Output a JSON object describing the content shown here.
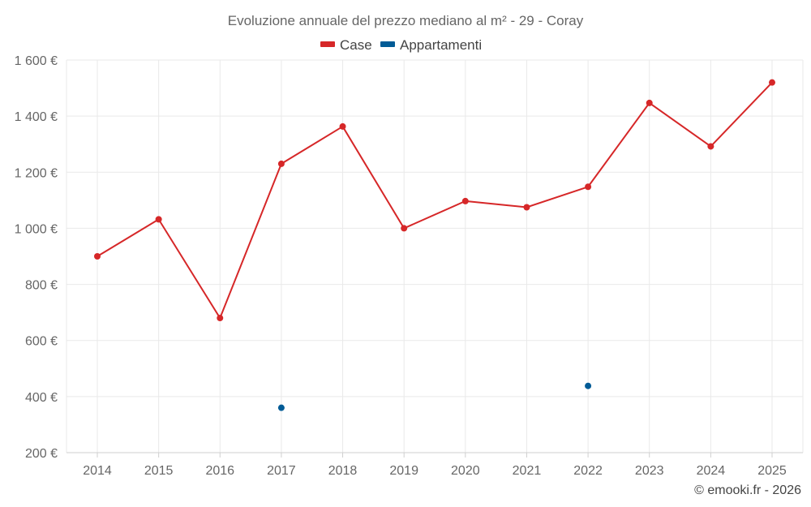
{
  "chart_data": {
    "type": "line",
    "title": "Evoluzione annuale del prezzo mediano al m² - 29 - Coray",
    "categories": [
      "2014",
      "2015",
      "2016",
      "2017",
      "2018",
      "2019",
      "2020",
      "2021",
      "2022",
      "2023",
      "2024",
      "2025"
    ],
    "series": [
      {
        "name": "Case",
        "color": "#d62728",
        "values": [
          900,
          1032,
          680,
          1230,
          1363,
          1000,
          1097,
          1075,
          1148,
          1447,
          1292,
          1520
        ]
      },
      {
        "name": "Appartamenti",
        "color": "#005b96",
        "values": [
          null,
          null,
          null,
          360,
          null,
          null,
          null,
          null,
          438,
          null,
          null,
          null
        ]
      }
    ],
    "y_ticks": [
      200,
      400,
      600,
      800,
      1000,
      1200,
      1400,
      1600
    ],
    "y_tick_labels": [
      "200 €",
      "400 €",
      "600 €",
      "800 €",
      "1 000 €",
      "1 200 €",
      "1 400 €",
      "1 600 €"
    ],
    "ylim": [
      200,
      1600
    ],
    "xlabel": "",
    "ylabel": "",
    "grid": true,
    "legend_position": "top-center"
  },
  "credit": "© emooki.fr - 2026"
}
